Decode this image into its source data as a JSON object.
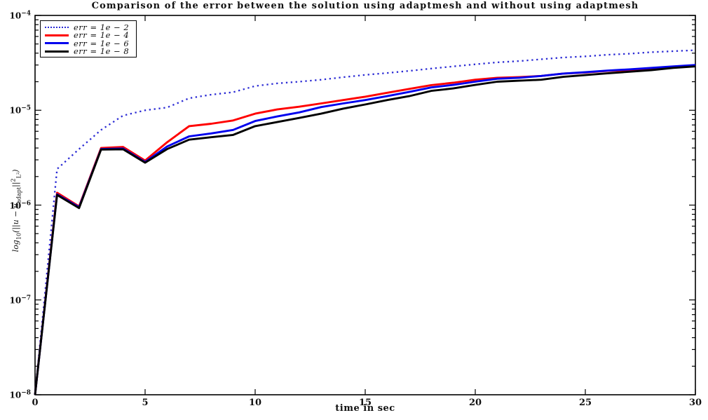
{
  "chart_data": {
    "type": "line",
    "title": "Comparison of the error between the solution using adaptmesh and without using adaptmesh",
    "xlabel": "time in sec",
    "ylabel_plain": "log10(||u − u_adapt||^2_L2)",
    "ylabel_parts": {
      "f1": "log",
      "f1sub": "10",
      "f2": "(||u − u",
      "f2sub": "adapt",
      "f3": "||",
      "f3sup": "2",
      "f3sub": "L²",
      "f4": ")"
    },
    "xlim": [
      0,
      30
    ],
    "ylim": [
      1e-08,
      0.0001
    ],
    "yscale": "log",
    "grid": false,
    "legend_position": "top-left",
    "xticks": [
      0,
      5,
      10,
      15,
      20,
      25,
      30
    ],
    "yticks": [
      {
        "base": "10",
        "exp": "−4"
      },
      {
        "base": "10",
        "exp": "−5"
      },
      {
        "base": "10",
        "exp": "−6"
      },
      {
        "base": "10",
        "exp": "−7"
      },
      {
        "base": "10",
        "exp": "−8"
      }
    ],
    "axis_color": "#000000",
    "x": [
      0,
      1,
      2,
      3,
      4,
      5,
      6,
      7,
      8,
      9,
      10,
      11,
      12,
      13,
      14,
      15,
      16,
      17,
      18,
      19,
      20,
      21,
      22,
      23,
      24,
      25,
      26,
      27,
      28,
      29,
      30
    ],
    "series": [
      {
        "name": "err = 1e − 2",
        "color": "#2a2ad4",
        "style": "dotted",
        "values": [
          1e-08,
          2.4e-06,
          3.9e-06,
          6.2e-06,
          8.8e-06,
          1e-05,
          1.07e-05,
          1.34e-05,
          1.46e-05,
          1.55e-05,
          1.8e-05,
          1.92e-05,
          2e-05,
          2.1e-05,
          2.23e-05,
          2.36e-05,
          2.47e-05,
          2.6e-05,
          2.75e-05,
          2.9e-05,
          3.05e-05,
          3.2e-05,
          3.3e-05,
          3.45e-05,
          3.6e-05,
          3.7e-05,
          3.85e-05,
          3.95e-05,
          4.1e-05,
          4.2e-05,
          4.3e-05
        ]
      },
      {
        "name": "err = 1e − 4",
        "color": "#ff0000",
        "style": "solid",
        "values": [
          1e-08,
          1.35e-06,
          9.7e-07,
          4e-06,
          4.1e-06,
          2.95e-06,
          4.6e-06,
          6.8e-06,
          7.2e-06,
          7.8e-06,
          9.2e-06,
          1.02e-05,
          1.09e-05,
          1.18e-05,
          1.28e-05,
          1.39e-05,
          1.53e-05,
          1.68e-05,
          1.84e-05,
          1.95e-05,
          2.1e-05,
          2.2e-05,
          2.24e-05,
          2.3e-05,
          2.44e-05,
          2.5e-05,
          2.6e-05,
          2.66e-05,
          2.75e-05,
          2.85e-05,
          2.95e-05
        ]
      },
      {
        "name": "err = 1e − 6",
        "color": "#0000ee",
        "style": "solid",
        "values": [
          1e-08,
          1.3e-06,
          9.5e-07,
          3.9e-06,
          3.95e-06,
          2.85e-06,
          4.15e-06,
          5.3e-06,
          5.7e-06,
          6.2e-06,
          7.7e-06,
          8.6e-06,
          9.5e-06,
          1.08e-05,
          1.18e-05,
          1.28e-05,
          1.41e-05,
          1.56e-05,
          1.74e-05,
          1.85e-05,
          2e-05,
          2.15e-05,
          2.2e-05,
          2.3e-05,
          2.44e-05,
          2.52e-05,
          2.62e-05,
          2.7e-05,
          2.8e-05,
          2.9e-05,
          3e-05
        ]
      },
      {
        "name": "err = 1e − 8",
        "color": "#000000",
        "style": "solid",
        "values": [
          1e-08,
          1.28e-06,
          9.3e-07,
          3.85e-06,
          3.88e-06,
          2.8e-06,
          3.9e-06,
          4.9e-06,
          5.2e-06,
          5.5e-06,
          6.8e-06,
          7.5e-06,
          8.3e-06,
          9.2e-06,
          1.04e-05,
          1.15e-05,
          1.28e-05,
          1.41e-05,
          1.6e-05,
          1.7e-05,
          1.85e-05,
          2e-05,
          2.05e-05,
          2.1e-05,
          2.25e-05,
          2.35e-05,
          2.45e-05,
          2.55e-05,
          2.65e-05,
          2.8e-05,
          2.9e-05
        ]
      }
    ]
  }
}
